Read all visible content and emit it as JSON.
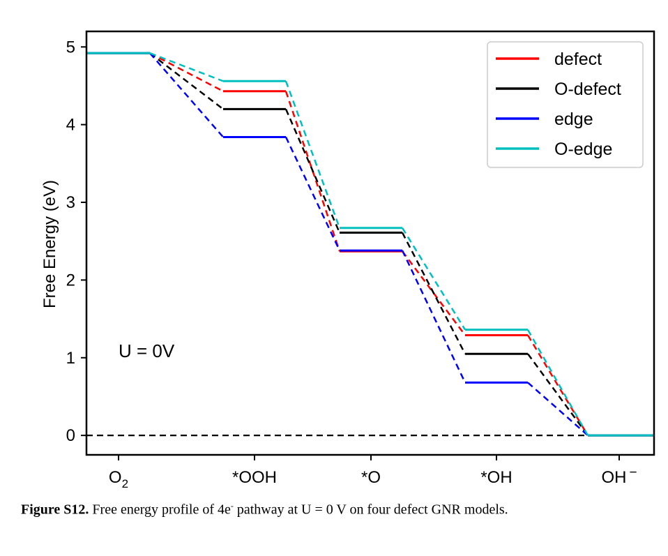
{
  "chart_data": {
    "type": "line",
    "ylabel": "Free Energy (eV)",
    "xlabel": "",
    "categories": [
      "O2",
      "*OOH",
      "*O",
      "*OH",
      "OH−"
    ],
    "category_labels": [
      {
        "main": "O",
        "sub": "2",
        "sup": ""
      },
      {
        "main": "*OOH",
        "sub": "",
        "sup": ""
      },
      {
        "main": "*O",
        "sub": "",
        "sup": ""
      },
      {
        "main": "*OH",
        "sub": "",
        "sup": ""
      },
      {
        "main": "OH",
        "sub": "",
        "sup": "−"
      }
    ],
    "ylim": [
      -0.25,
      5.2
    ],
    "yticks": [
      "0",
      "1",
      "2",
      "3",
      "4",
      "5"
    ],
    "grid": false,
    "legend_position": "top-right",
    "annotation": "U = 0V",
    "reference_line": {
      "y": 0,
      "style": "dashed",
      "color": "#000000"
    },
    "series": [
      {
        "name": "defect",
        "color": "#ff0000",
        "values": [
          4.92,
          4.43,
          2.37,
          1.29,
          0
        ]
      },
      {
        "name": "O-defect",
        "color": "#000000",
        "values": [
          4.92,
          4.2,
          2.61,
          1.05,
          0
        ]
      },
      {
        "name": "edge",
        "color": "#0000ff",
        "values": [
          4.92,
          3.84,
          2.38,
          0.68,
          0
        ]
      },
      {
        "name": "O-edge",
        "color": "#00bfbf",
        "values": [
          4.92,
          4.56,
          2.67,
          1.36,
          0
        ]
      }
    ]
  },
  "caption": {
    "label": "Figure S12.",
    "text_before": " Free energy profile of 4e",
    "superscript": "-",
    "text_after": " pathway at U = 0 V on four defect GNR models."
  }
}
